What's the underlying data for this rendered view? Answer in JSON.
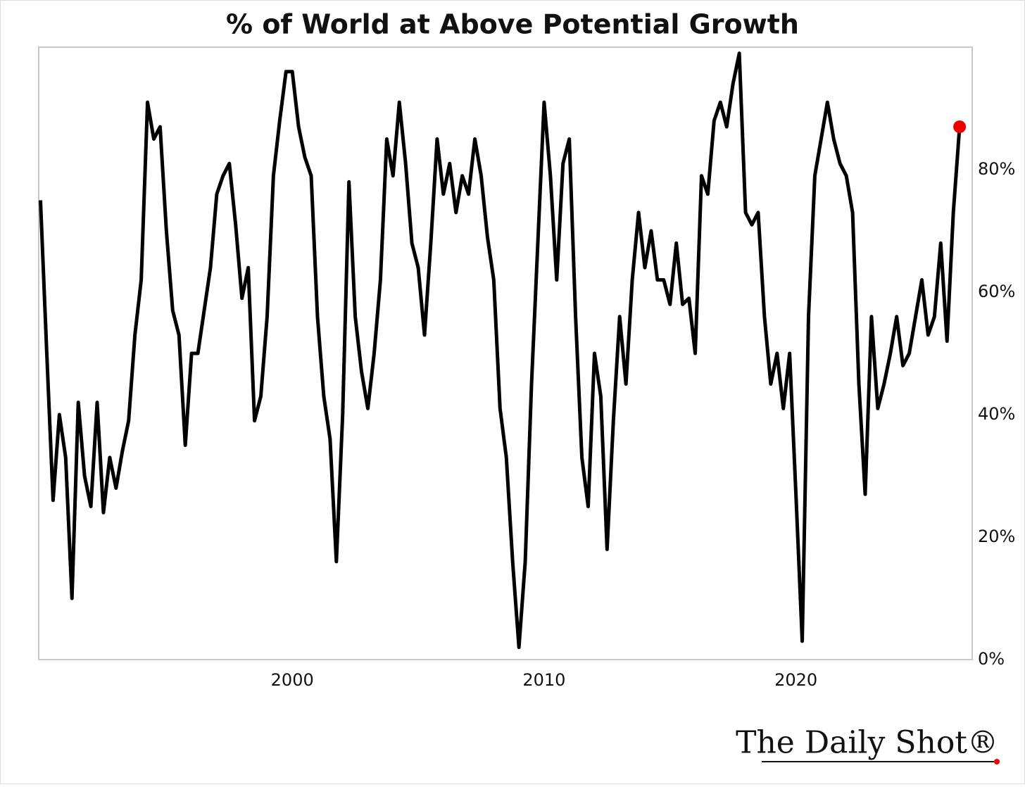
{
  "chart_data": {
    "type": "line",
    "title": "% of World at Above Potential Growth",
    "logo": "The Daily Shot®",
    "color": "#000000",
    "last_point_color": "#ee0000",
    "grid": false,
    "xlim": [
      1989.93,
      2027.0
    ],
    "xticks": [
      2000,
      2010,
      2020
    ],
    "ylim": [
      0,
      100
    ],
    "yticks": [
      {
        "value": 0,
        "label": "0%"
      },
      {
        "value": 20,
        "label": "20%"
      },
      {
        "value": 40,
        "label": "40%"
      },
      {
        "value": 60,
        "label": "60%"
      },
      {
        "value": 80,
        "label": "80%"
      }
    ],
    "x": [
      1990.0,
      1990.25,
      1990.5,
      1990.75,
      1991.0,
      1991.25,
      1991.5,
      1991.75,
      1992.0,
      1992.25,
      1992.5,
      1992.75,
      1993.0,
      1993.25,
      1993.5,
      1993.75,
      1994.0,
      1994.25,
      1994.5,
      1994.75,
      1995.0,
      1995.25,
      1995.5,
      1995.75,
      1996.0,
      1996.25,
      1996.5,
      1996.75,
      1997.0,
      1997.25,
      1997.5,
      1997.75,
      1998.0,
      1998.25,
      1998.5,
      1998.75,
      1999.0,
      1999.25,
      1999.5,
      1999.75,
      2000.0,
      2000.25,
      2000.5,
      2000.75,
      2001.0,
      2001.25,
      2001.5,
      2001.75,
      2002.0,
      2002.25,
      2002.5,
      2002.75,
      2003.0,
      2003.25,
      2003.5,
      2003.75,
      2004.0,
      2004.25,
      2004.5,
      2004.75,
      2005.0,
      2005.25,
      2005.5,
      2005.75,
      2006.0,
      2006.25,
      2006.5,
      2006.75,
      2007.0,
      2007.25,
      2007.5,
      2007.75,
      2008.0,
      2008.25,
      2008.5,
      2008.75,
      2009.0,
      2009.25,
      2009.5,
      2009.75,
      2010.0,
      2010.25,
      2010.5,
      2010.75,
      2011.0,
      2011.25,
      2011.5,
      2011.75,
      2012.0,
      2012.25,
      2012.5,
      2012.75,
      2013.0,
      2013.25,
      2013.5,
      2013.75,
      2014.0,
      2014.25,
      2014.5,
      2014.75,
      2015.0,
      2015.25,
      2015.5,
      2015.75,
      2016.0,
      2016.25,
      2016.5,
      2016.75,
      2017.0,
      2017.25,
      2017.5,
      2017.75,
      2018.0,
      2018.25,
      2018.5,
      2018.75,
      2019.0,
      2019.25,
      2019.5,
      2019.75,
      2020.0,
      2020.25,
      2020.5,
      2020.75,
      2021.0,
      2021.25,
      2021.5,
      2021.75,
      2022.0,
      2022.25,
      2022.5,
      2022.75,
      2023.0,
      2023.25,
      2023.5,
      2023.75,
      2024.0,
      2024.25,
      2024.5,
      2024.75,
      2025.0,
      2025.25,
      2025.5,
      2025.75,
      2026.0,
      2026.25,
      2026.5
    ],
    "values": [
      75,
      50,
      26,
      40,
      33,
      10,
      42,
      30,
      25,
      42,
      24,
      33,
      28,
      34,
      39,
      53,
      62,
      91,
      85,
      87,
      70,
      57,
      53,
      35,
      50,
      50,
      57,
      64,
      76,
      79,
      81,
      71,
      59,
      64,
      39,
      43,
      56,
      79,
      88,
      96,
      96,
      87,
      82,
      79,
      56,
      43,
      36,
      16,
      40,
      78,
      56,
      47,
      41,
      50,
      62,
      85,
      79,
      91,
      81,
      68,
      64,
      53,
      68,
      85,
      76,
      81,
      73,
      79,
      76,
      85,
      79,
      69,
      62,
      41,
      33,
      16,
      2,
      16,
      45,
      68,
      91,
      79,
      62,
      81,
      85,
      56,
      33,
      25,
      50,
      43,
      18,
      39,
      56,
      45,
      62,
      73,
      64,
      70,
      62,
      62,
      58,
      68,
      58,
      59,
      50,
      79,
      76,
      88,
      91,
      87,
      94,
      99,
      73,
      71,
      73,
      56,
      45,
      50,
      41,
      50,
      27,
      3,
      56,
      79,
      85,
      91,
      85,
      81,
      79,
      73,
      45,
      27,
      56,
      41,
      45,
      50,
      56,
      48,
      50,
      56,
      62,
      53,
      56,
      68,
      52,
      73,
      87
    ]
  }
}
